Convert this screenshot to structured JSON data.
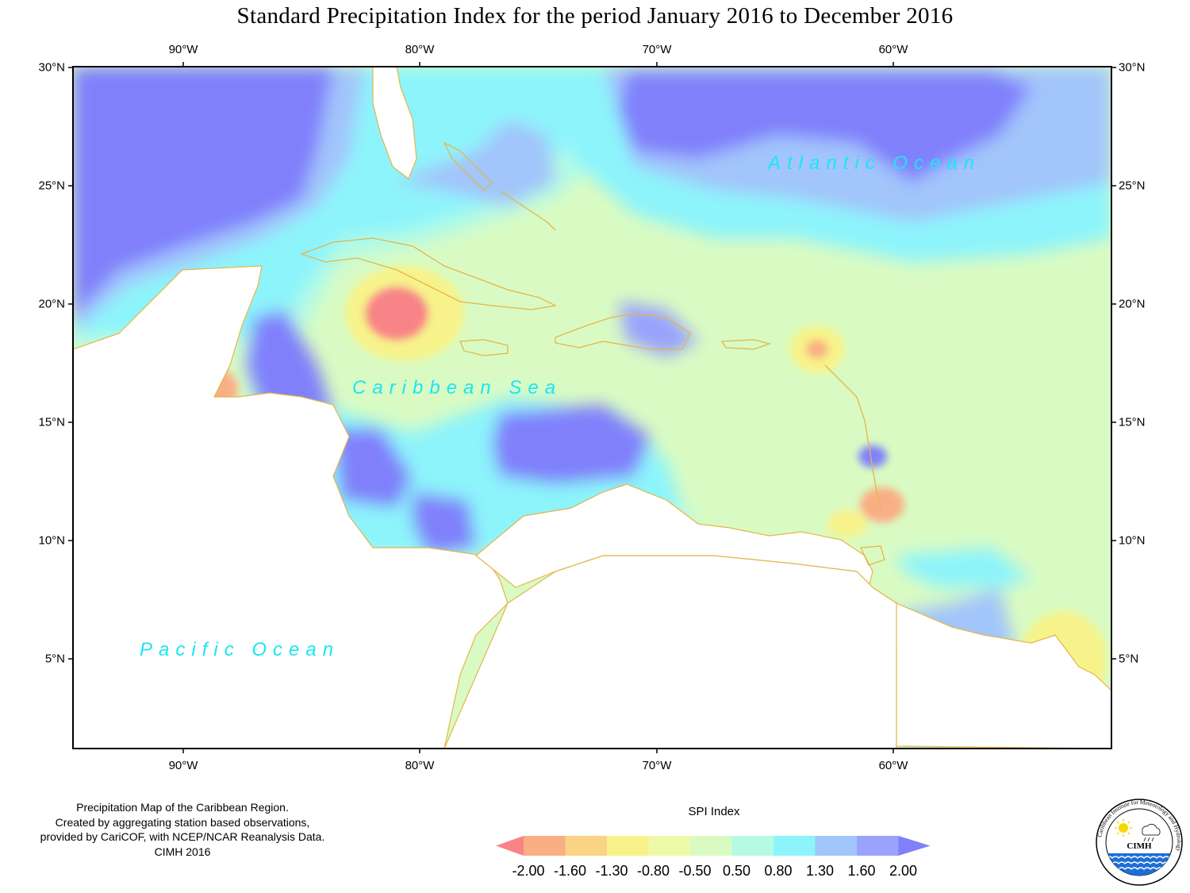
{
  "title": "Standard Precipitation Index for the period January 2016 to December 2016",
  "axes": {
    "longitude_labels": [
      "90°W",
      "80°W",
      "70°W",
      "60°W"
    ],
    "latitude_labels": [
      "30°N",
      "25°N",
      "20°N",
      "15°N",
      "10°N",
      "5°N"
    ]
  },
  "map": {
    "region": "Caribbean",
    "ocean_labels": {
      "atlantic": "Atlantic Ocean",
      "caribbean": "Caribbean Sea",
      "pacific": "Pacific Ocean"
    }
  },
  "credit": {
    "line1": "Precipitation Map of the Caribbean Region.",
    "line2": "Created by aggregating station based observations,",
    "line3": "provided by CariCOF, with NCEP/NCAR Reanalysis Data.",
    "line4": "CIMH 2016"
  },
  "legend": {
    "title": "SPI Index",
    "values": [
      "-2.00",
      "-1.60",
      "-1.30",
      "-0.80",
      "-0.50",
      "0.50",
      "0.80",
      "1.30",
      "1.60",
      "2.00"
    ],
    "colors": [
      "#f88488",
      "#f9ae84",
      "#fbd384",
      "#f7f38a",
      "#eef9a9",
      "#d9fbc3",
      "#b5fbe3",
      "#8df4fb",
      "#a2c5fb",
      "#9aa3fb",
      "#8080fb"
    ]
  },
  "logo": {
    "text": "CIMH",
    "ring_text": "Caribbean Institute for Meteorology and Hydrology"
  },
  "colors": {
    "ocean_label": "#19e6f5",
    "coastline": "#e5b54a"
  }
}
